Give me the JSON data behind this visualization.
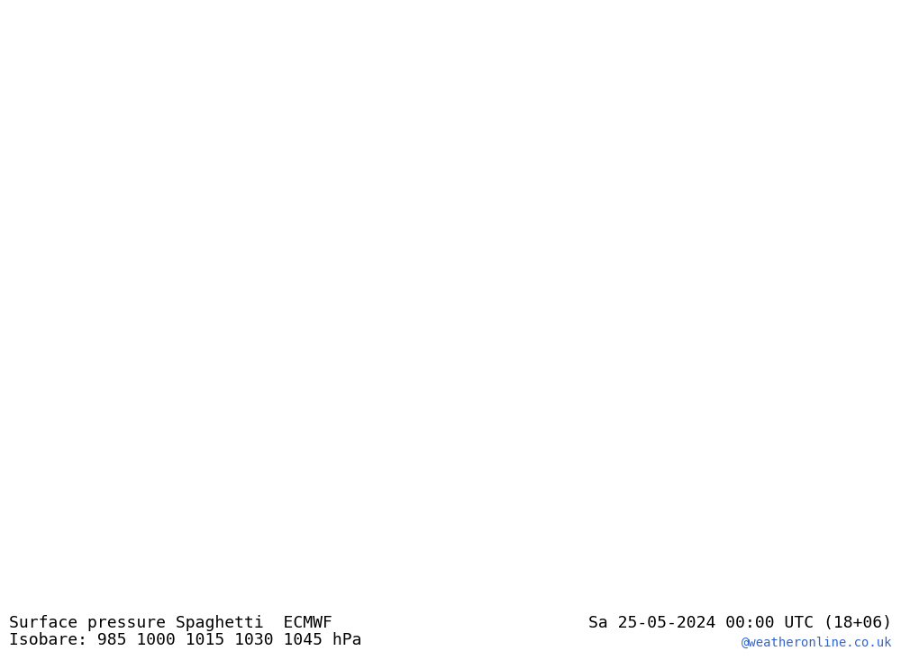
{
  "title_left": "Surface pressure Spaghetti  ECMWF",
  "title_right": "Sa 25-05-2024 00:00 UTC (18+06)",
  "subtitle": "Isobare: 985 1000 1015 1030 1045 hPa",
  "watermark": "@weatheronline.co.uk",
  "map_bg_color": "#b3f0b3",
  "land_color": "#b3f0b3",
  "sea_color": "#b3f0b3",
  "border_color": "#6699aa",
  "text_color": "#000000",
  "watermark_color": "#3366cc",
  "bottom_bar_color": "#ffffff",
  "bottom_bar_height": 0.095,
  "fig_width": 10.0,
  "fig_height": 7.33,
  "font_size_title": 13,
  "font_size_subtitle": 13,
  "font_size_watermark": 10,
  "lon_min": -20,
  "lon_max": 65,
  "lat_min": 20,
  "lat_max": 65
}
